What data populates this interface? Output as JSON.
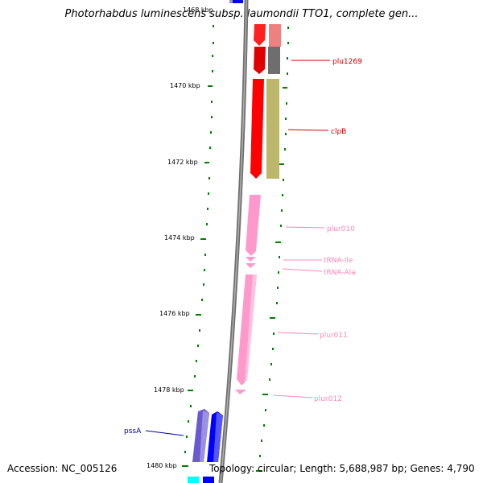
{
  "title": "Photorhabdus luminescens subsp. laumondii TTO1, complete gen...",
  "footer": {
    "accession": "Accession: NC_005126",
    "stats": "Topology: circular; Length: 5,688,987 bp; Genes: 4,790"
  },
  "colors": {
    "tick": "#008000",
    "backbone": "#808080",
    "red_gene": "#ff0000",
    "pink_gene": "#ff99cc",
    "blue_gene": "#0000ff",
    "purple_gene": "#6a5acd",
    "cyan_gene": "#00ffff",
    "olive_cog": "#bdb76b",
    "gray_cog": "#777777",
    "salmon_cog": "#f08080",
    "red_label": "#cc0000",
    "pink_label": "#ff88bb",
    "blue_label": "#0000aa"
  },
  "scale": {
    "partial_label": "1468 kbp",
    "labels": [
      "1470 kbp",
      "1472 kbp",
      "1474 kbp",
      "1476 kbp",
      "1478 kbp",
      "1480 kbp"
    ]
  },
  "gene_labels": {
    "plu1269": "plu1269",
    "clpB": "clpB",
    "plur010": "plur010",
    "trna_ile": "tRNA-Ile",
    "trna_ala": "tRNA-Ala",
    "plur011": "plur011",
    "plur012": "plur012",
    "pssA": "pssA"
  }
}
